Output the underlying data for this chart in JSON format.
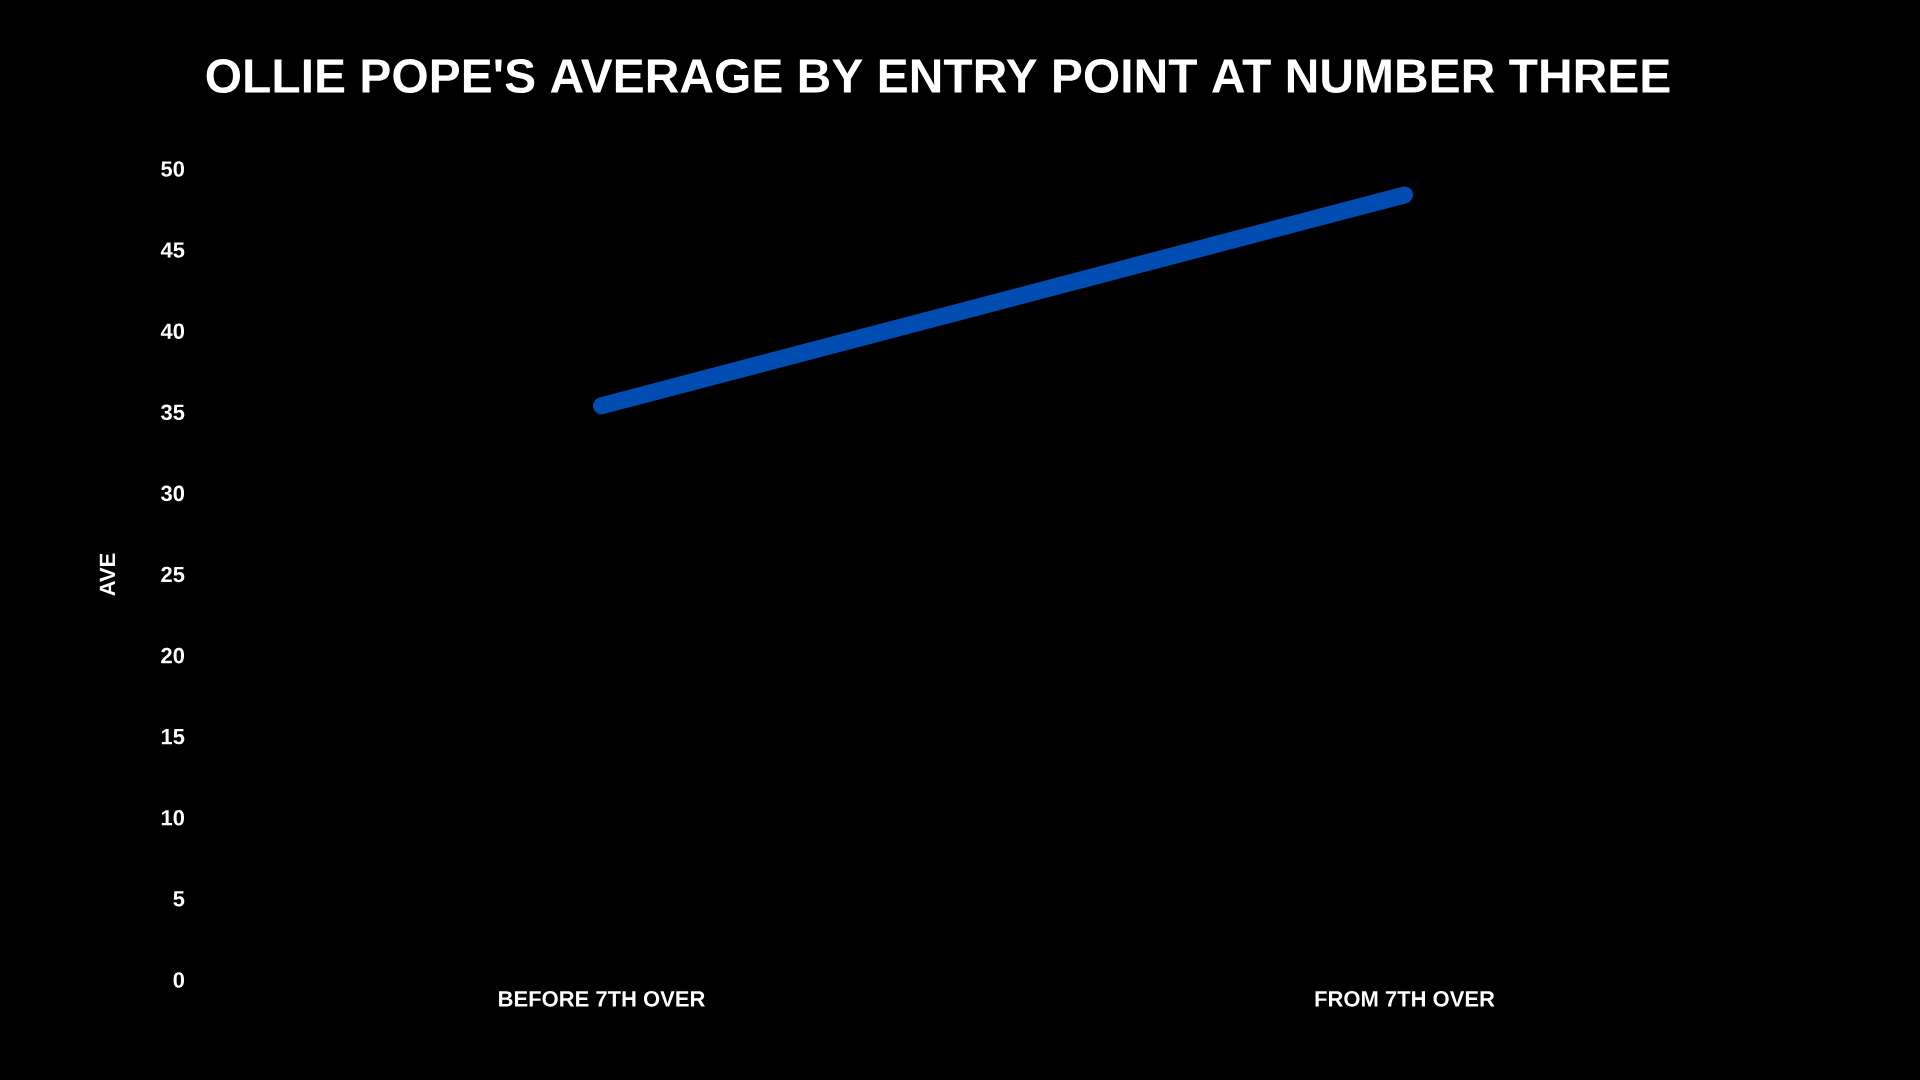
{
  "chart_data": {
    "type": "line",
    "title": "OLLIE POPE'S AVERAGE BY ENTRY POINT AT NUMBER THREE",
    "ylabel": "AVE",
    "categories": [
      "BEFORE 7TH OVER",
      "FROM 7TH OVER"
    ],
    "series": [
      {
        "color": "#004cb0",
        "values": [
          35.4,
          48.4
        ]
      }
    ],
    "ylim": [
      0,
      50
    ],
    "yticks": [
      0,
      5,
      10,
      15,
      20,
      25,
      30,
      35,
      40,
      45,
      50
    ]
  }
}
